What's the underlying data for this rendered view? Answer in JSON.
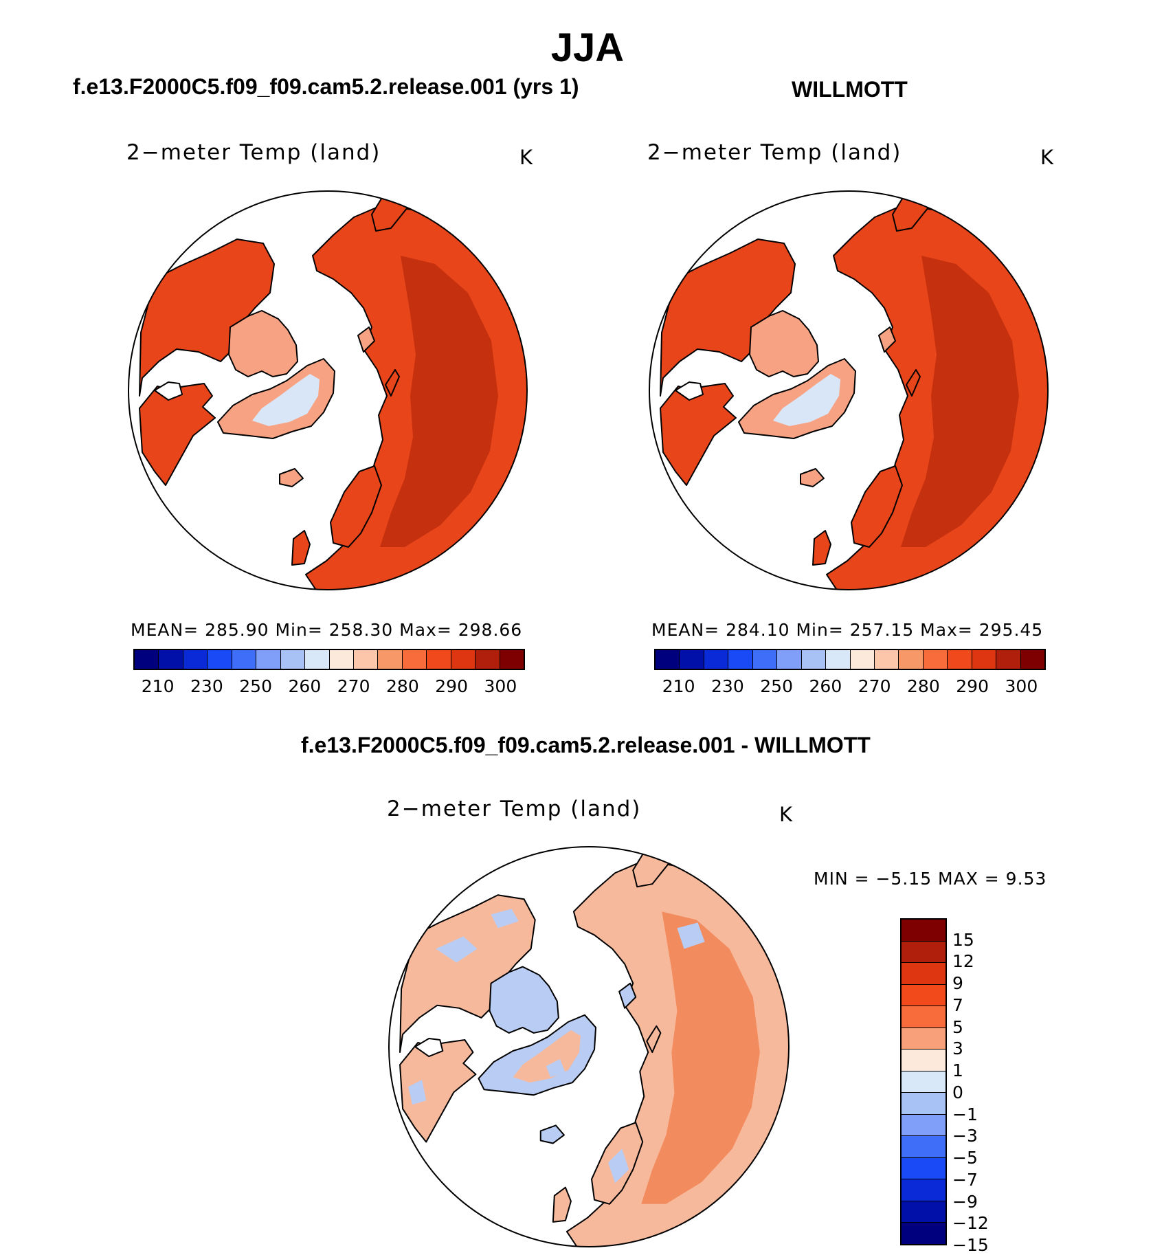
{
  "title": "JJA",
  "panel1": {
    "case": "f.e13.F2000C5.f09_f09.cam5.2.release.001 (yrs 1)",
    "plot_title": "2−meter Temp (land)",
    "units": "K",
    "stats": "MEAN= 285.90   Min= 258.30   Max= 298.66",
    "tick_labels": [
      "210",
      "230",
      "250",
      "260",
      "270",
      "280",
      "290",
      "300"
    ]
  },
  "panel2": {
    "case": "WILLMOTT",
    "plot_title": "2−meter Temp (land)",
    "units": "K",
    "stats": "MEAN= 284.10   Min= 257.15   Max= 295.45",
    "tick_labels": [
      "210",
      "230",
      "250",
      "260",
      "270",
      "280",
      "290",
      "300"
    ]
  },
  "panel3": {
    "case": "f.e13.F2000C5.f09_f09.cam5.2.release.001 - WILLMOTT",
    "plot_title": "2−meter Temp (land)",
    "units": "K",
    "minmax": "MIN =    −5.15  MAX =     9.53",
    "tick_labels": [
      "15",
      "12",
      "9",
      "7",
      "5",
      "3",
      "1",
      "0",
      "−1",
      "−3",
      "−5",
      "−7",
      "−9",
      "−12",
      "−15"
    ]
  },
  "colors": {
    "abs_scale": [
      "#00007f",
      "#0010a8",
      "#0a2ad8",
      "#1a4af5",
      "#3f6ff8",
      "#7f9ff8",
      "#a9c2f6",
      "#d8e8f9",
      "#fde9dc",
      "#fbc6aa",
      "#f79868",
      "#f86b3b",
      "#f04a1c",
      "#de3610",
      "#b01e0c",
      "#7f0000"
    ],
    "diff_scale": [
      "#7f0000",
      "#b01e0c",
      "#de3610",
      "#f34a1c",
      "#f86b3b",
      "#f7a07a",
      "#fde9dc",
      "#d8e8f9",
      "#a9c2f6",
      "#7f9ff8",
      "#3f6ff8",
      "#1a4af5",
      "#0a2ad8",
      "#0010a8",
      "#00007f"
    ],
    "land_abs": "#e8451a",
    "land_abs_dark": "#c5300f",
    "land_cold": "#f7a383",
    "ice": "#d9e6f8",
    "land_diff": "#f7b99c",
    "diff_warm": "#f28c5e",
    "diff_cool": "#b9ccf3"
  }
}
